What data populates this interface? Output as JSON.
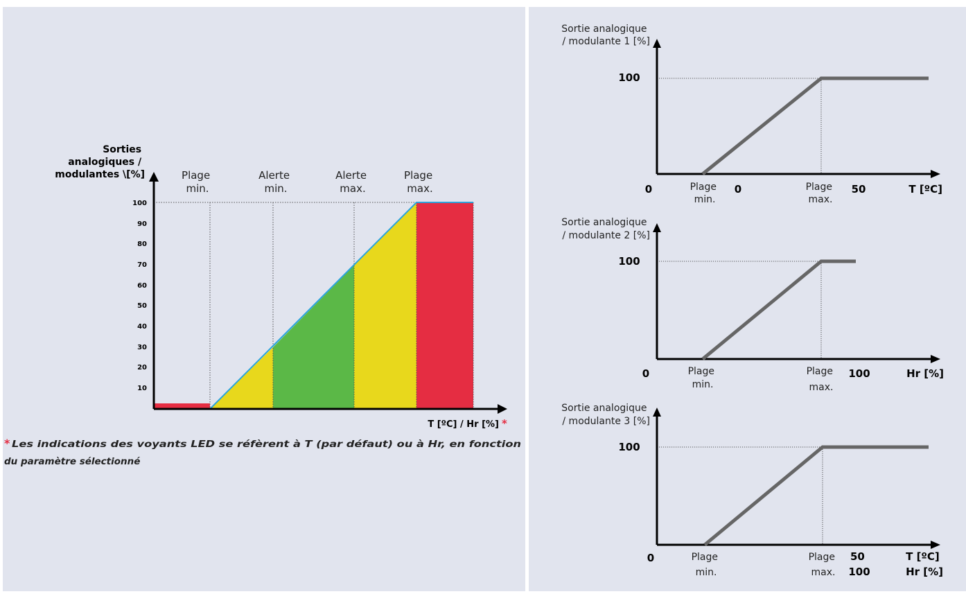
{
  "colors": {
    "background": "#e1e4ee",
    "axis": "#000000",
    "curve": "#666666",
    "blue_line": "#29a3dc",
    "red": "#e52d42",
    "yellow": "#e8d81c",
    "green": "#5bb847",
    "grid": "#555555"
  },
  "main_chart": {
    "ylabel_lines": [
      "Sorties",
      "analogiques /",
      "modulantes \\[%]"
    ],
    "yticks": [
      "10",
      "20",
      "30",
      "40",
      "50",
      "60",
      "70",
      "80",
      "90",
      "100"
    ],
    "zones": [
      {
        "lines": [
          "Plage",
          "min."
        ]
      },
      {
        "lines": [
          "Alerte",
          "min."
        ]
      },
      {
        "lines": [
          "Alerte",
          "max."
        ]
      },
      {
        "lines": [
          "Plage",
          "max."
        ]
      }
    ],
    "xlabel": "T [ºC] / Hr [%]",
    "star": "*",
    "chart_data": {
      "type": "line",
      "y_range": [
        0,
        100
      ],
      "zone_boundaries_y": [
        0,
        30,
        70,
        100
      ],
      "segments": [
        {
          "from_y": 0,
          "to_y": 30,
          "color": "yellow"
        },
        {
          "from_y": 30,
          "to_y": 70,
          "color": "green"
        },
        {
          "from_y": 70,
          "to_y": 100,
          "color": "yellow"
        },
        {
          "from_y": 100,
          "to_y": 100,
          "color": "red"
        }
      ]
    }
  },
  "footnote": {
    "star": "*",
    "line1": " Les indications des voyants LED se réfèrent à T (par défaut) ou à Hr, en fonction",
    "line2": "du paramètre sélectionné"
  },
  "graphs": [
    {
      "ylabel_lines": [
        "Sortie analogique",
        "/ modulante 1 [%]"
      ],
      "y100": "100",
      "origin": "0",
      "min_lines": [
        "Plage",
        "min."
      ],
      "max_lines": [
        "Plage",
        "max."
      ],
      "xticks": [
        "0",
        "50"
      ],
      "xlabel_lines": [
        "T [ºC]"
      ]
    },
    {
      "ylabel_lines": [
        "Sortie analogique",
        "/ modulante 2 [%]"
      ],
      "y100": "100",
      "origin": "0",
      "min_lines": [
        "Plage",
        "min."
      ],
      "max_lines": [
        "Plage",
        "max."
      ],
      "xticks": [
        "100"
      ],
      "xlabel_lines": [
        "Hr [%]"
      ]
    },
    {
      "ylabel_lines": [
        "Sortie analogique",
        "/ modulante 3 [%]"
      ],
      "y100": "100",
      "origin": "0",
      "min_lines": [
        "Plage",
        "min."
      ],
      "max_lines": [
        "Plage",
        "max."
      ],
      "xticks_stack": [
        "50",
        "100"
      ],
      "xlabel_lines": [
        "T [ºC]",
        "Hr [%]"
      ]
    }
  ]
}
